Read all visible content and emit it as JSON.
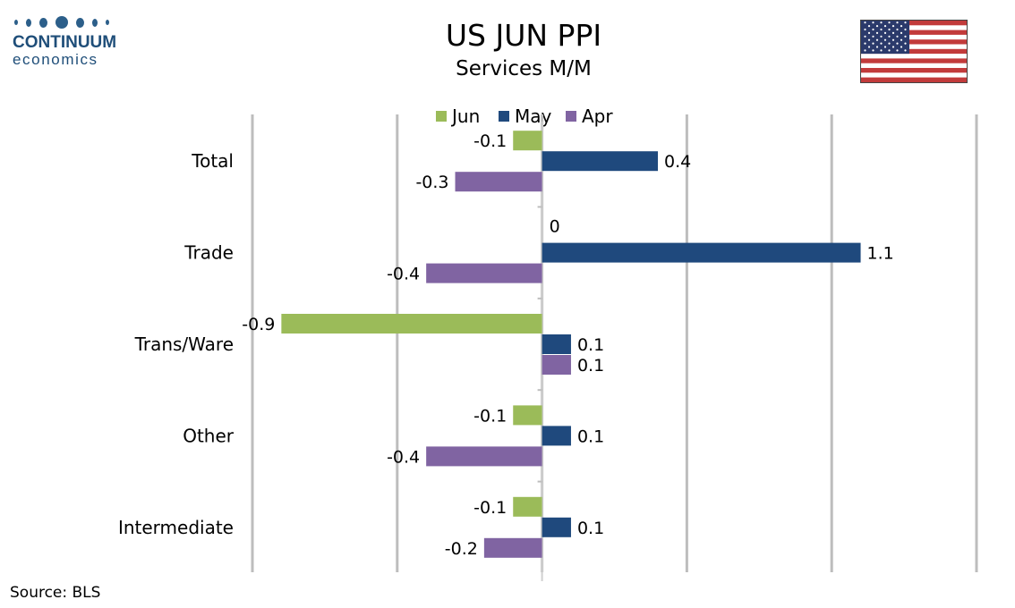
{
  "header": {
    "logo_line1": "CONTINUUM",
    "logo_line2": "economics",
    "flag_icon": "us-flag-icon"
  },
  "chart_data": {
    "type": "bar",
    "orientation": "horizontal",
    "title": "US JUN PPI",
    "subtitle": "Services M/M",
    "categories": [
      "Total",
      "Trade",
      "Trans/Ware",
      "Other",
      "Intermediate"
    ],
    "series": [
      {
        "name": "Jun",
        "color": "#9bbb59",
        "values": [
          -0.1,
          0,
          -0.9,
          -0.1,
          -0.1
        ],
        "labels": [
          "-0.1",
          "0",
          "-0.9",
          "-0.1",
          "-0.1"
        ]
      },
      {
        "name": "May",
        "color": "#1f497d",
        "values": [
          0.4,
          1.1,
          0.1,
          0.1,
          0.1
        ],
        "labels": [
          "0.4",
          "1.1",
          "0.1",
          "0.1",
          "0.1"
        ]
      },
      {
        "name": "Apr",
        "color": "#8064a2",
        "values": [
          -0.3,
          -0.4,
          0.1,
          -0.4,
          -0.2
        ],
        "labels": [
          "-0.3",
          "-0.4",
          "0.1",
          "-0.4",
          "-0.2"
        ]
      }
    ],
    "xlim": [
      -1.0,
      1.5
    ],
    "grid_step": 0.5,
    "grid": true,
    "legend": "top-center"
  },
  "footer": {
    "source": "Source: BLS"
  }
}
